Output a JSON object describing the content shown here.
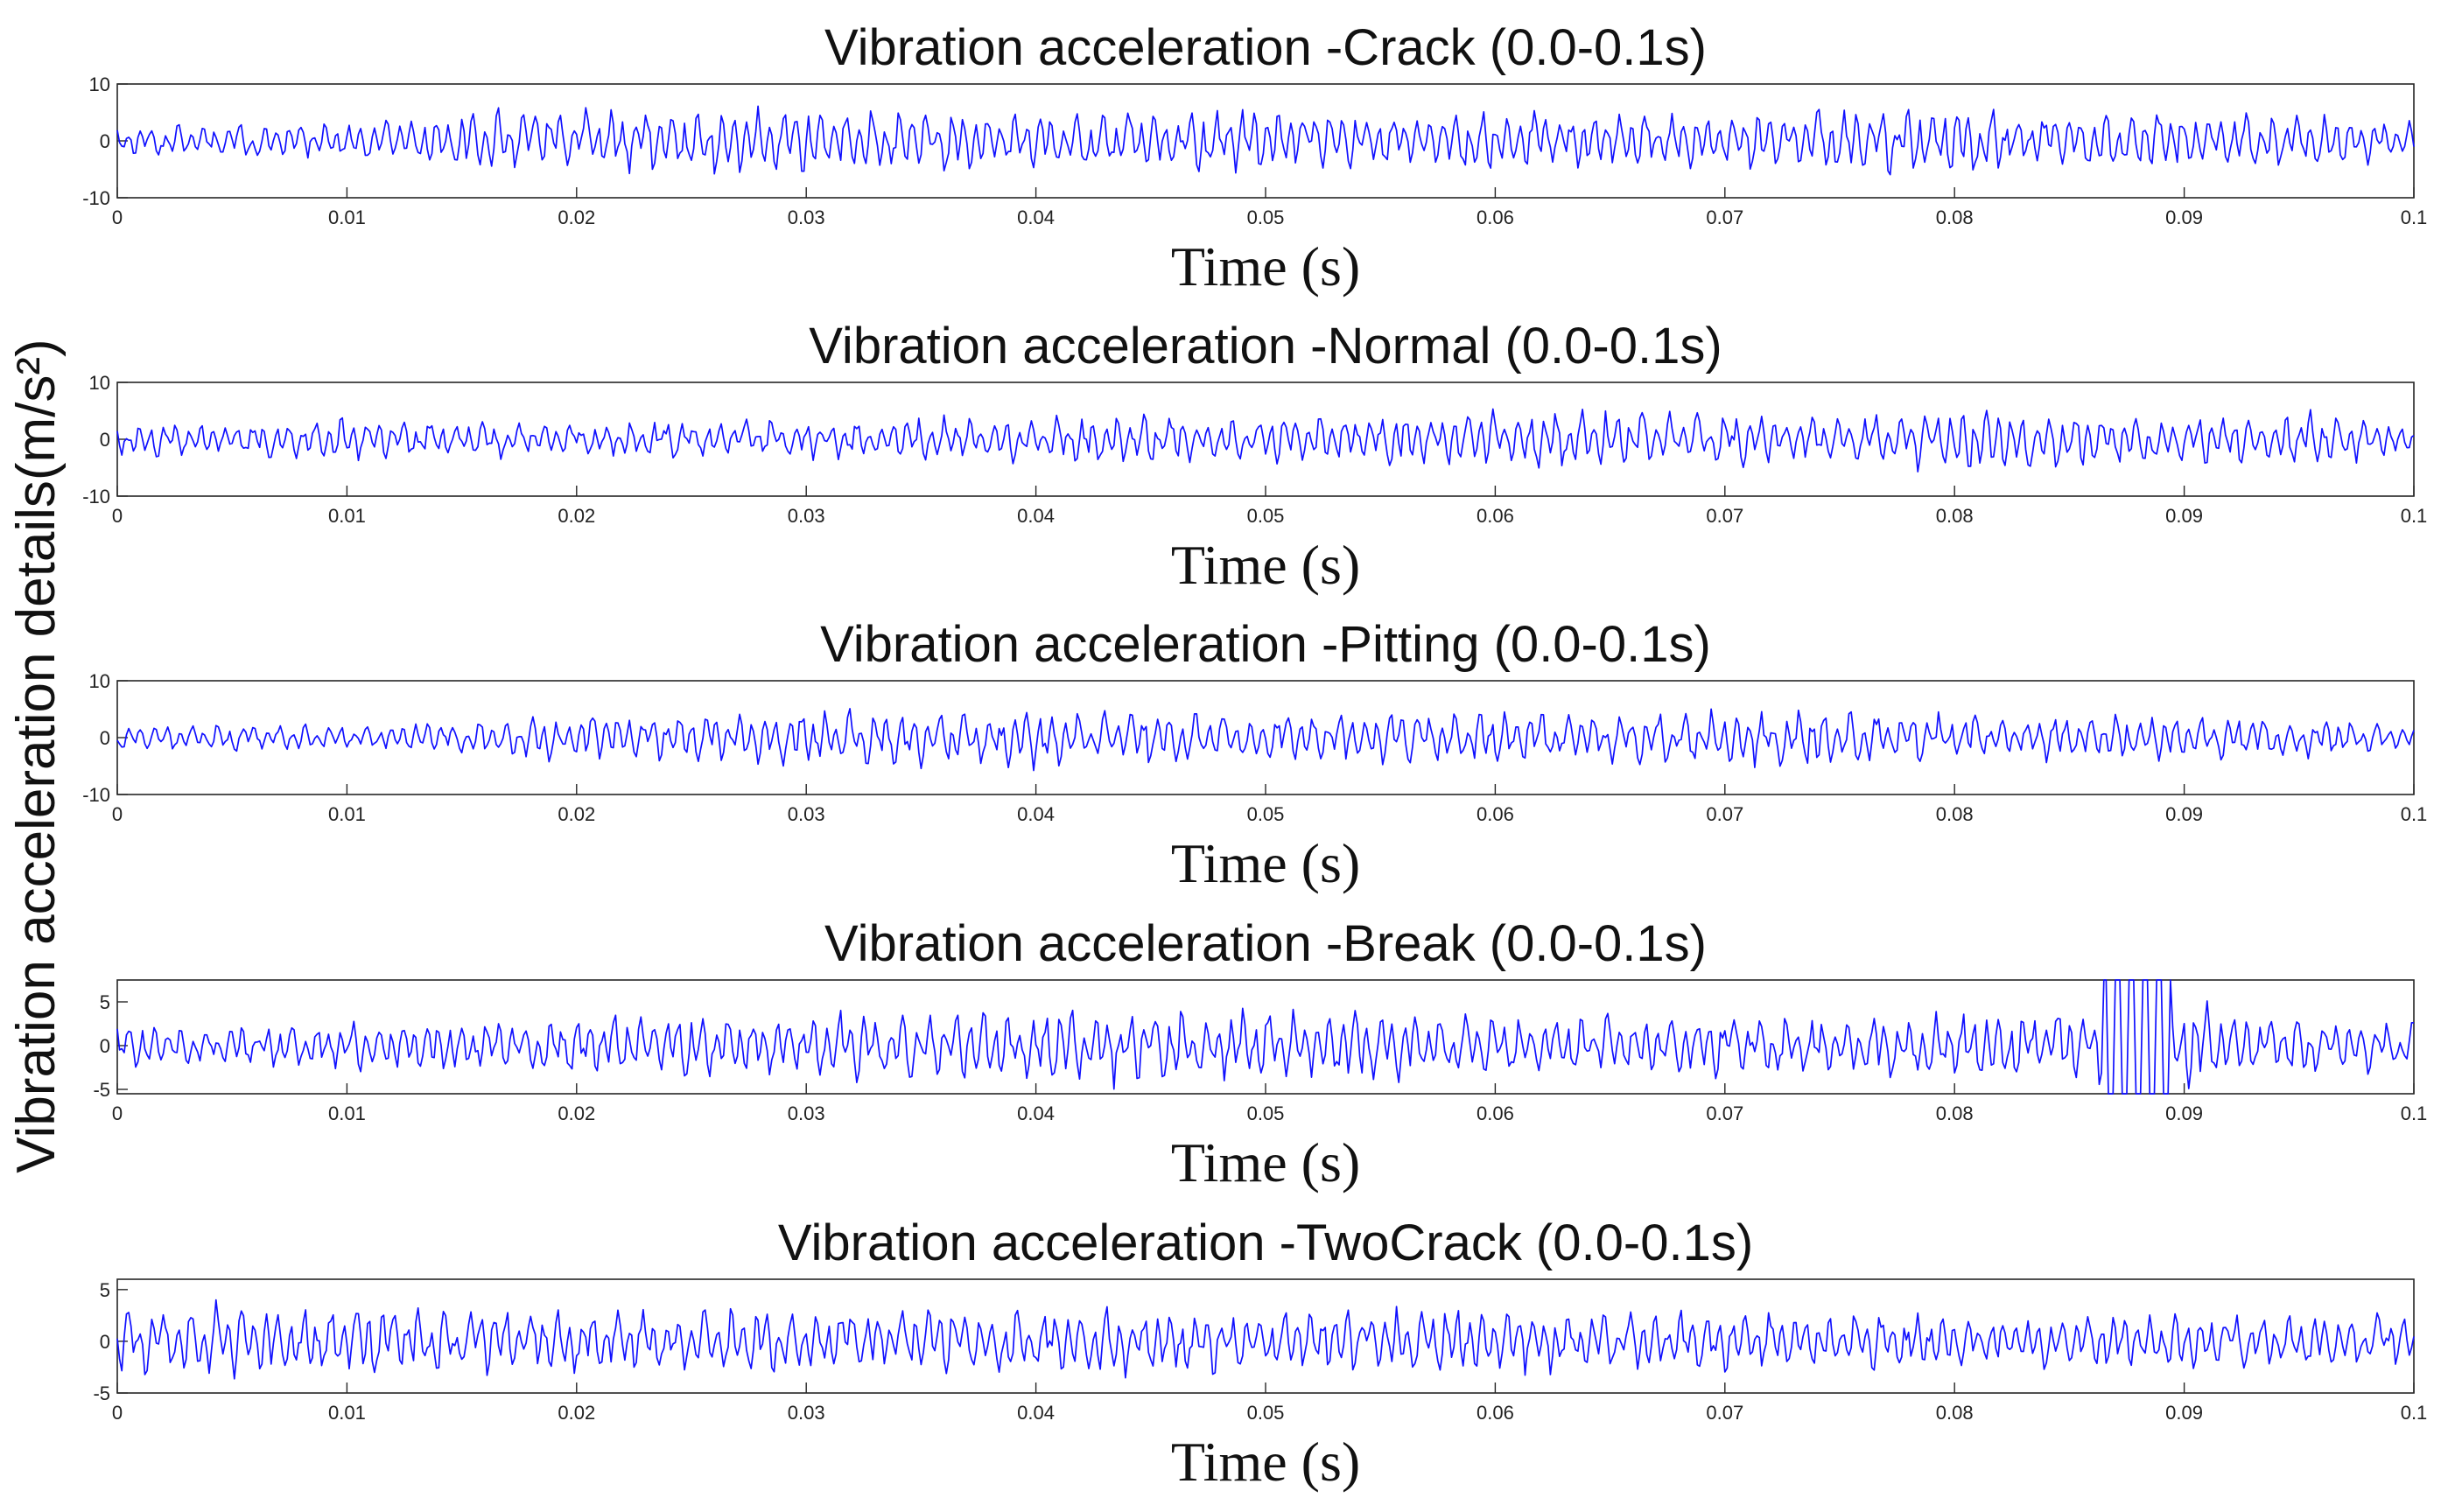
{
  "ylabel": "Vibration acceleration details(m/s²)",
  "colors": {
    "line": "#1010ff",
    "axis": "#262626",
    "text": "#111111"
  },
  "chart_data": [
    {
      "type": "line",
      "title": "Vibration acceleration -Crack (0.0-0.1s)",
      "xlabel": "Time (s)",
      "xlim": [
        0,
        0.1
      ],
      "ylim": [
        -10,
        10
      ],
      "xticks": [
        "0",
        "0.01",
        "0.02",
        "0.03",
        "0.04",
        "0.05",
        "0.06",
        "0.07",
        "0.08",
        "0.09",
        "0.1"
      ],
      "yticks": [
        {
          "v": 10,
          "label": "10"
        },
        {
          "v": 0,
          "label": "0"
        },
        {
          "v": -10,
          "label": "-10"
        }
      ],
      "points": 1000,
      "amp_envelope": [
        2.5,
        2.5,
        2.6,
        4.5,
        4.5,
        5.5,
        5.0,
        5.5,
        4.5,
        4.8,
        5.0,
        4.0,
        5.0,
        4.5,
        4.5,
        5.0,
        5.5,
        4.5,
        4.5,
        4.0,
        3.0
      ],
      "series": [
        {
          "name": "Crack",
          "seed": 11
        }
      ]
    },
    {
      "type": "line",
      "title": "Vibration acceleration -Normal (0.0-0.1s)",
      "xlabel": "Time (s)",
      "xlim": [
        0,
        0.1
      ],
      "ylim": [
        -10,
        10
      ],
      "xticks": [
        "0",
        "0.01",
        "0.02",
        "0.03",
        "0.04",
        "0.05",
        "0.06",
        "0.07",
        "0.08",
        "0.09",
        "0.1"
      ],
      "yticks": [
        {
          "v": 10,
          "label": "10"
        },
        {
          "v": 0,
          "label": "0"
        },
        {
          "v": -10,
          "label": "-10"
        }
      ],
      "points": 1000,
      "amp_envelope": [
        2.8,
        2.5,
        3.5,
        3.0,
        2.5,
        3.0,
        3.0,
        3.5,
        3.5,
        4.0,
        3.5,
        4.0,
        4.5,
        5.0,
        4.0,
        3.5,
        5.0,
        4.5,
        3.5,
        4.5,
        2.5
      ],
      "series": [
        {
          "name": "Normal",
          "seed": 23
        }
      ]
    },
    {
      "type": "line",
      "title": "Vibration acceleration -Pitting (0.0-0.1s)",
      "xlabel": "Time (s)",
      "xlim": [
        0,
        0.1
      ],
      "ylim": [
        -10,
        10
      ],
      "xticks": [
        "0",
        "0.01",
        "0.02",
        "0.03",
        "0.04",
        "0.05",
        "0.06",
        "0.07",
        "0.08",
        "0.09",
        "0.1"
      ],
      "yticks": [
        {
          "v": 10,
          "label": "10"
        },
        {
          "v": 0,
          "label": "0"
        },
        {
          "v": -10,
          "label": "-10"
        }
      ],
      "points": 1000,
      "amp_envelope": [
        2.0,
        2.0,
        2.0,
        2.5,
        4.0,
        4.0,
        4.5,
        4.5,
        5.0,
        4.5,
        4.0,
        4.0,
        4.5,
        4.0,
        4.5,
        5.0,
        3.5,
        3.5,
        3.5,
        3.0,
        2.5
      ],
      "series": [
        {
          "name": "Pitting",
          "seed": 37
        }
      ]
    },
    {
      "type": "line",
      "title": "Vibration acceleration -Break (0.0-0.1s)",
      "xlabel": "Time (s)",
      "xlim": [
        0,
        0.1
      ],
      "ylim": [
        -5.5,
        7.5
      ],
      "xticks": [
        "0",
        "0.01",
        "0.02",
        "0.03",
        "0.04",
        "0.05",
        "0.06",
        "0.07",
        "0.08",
        "0.09",
        "0.1"
      ],
      "yticks": [
        {
          "v": 5,
          "label": "5"
        },
        {
          "v": 0,
          "label": "0"
        },
        {
          "v": -5,
          "label": "-5"
        }
      ],
      "points": 1000,
      "amp_envelope": [
        2.5,
        2.0,
        2.5,
        3.0,
        3.0,
        3.5,
        3.5,
        3.5,
        4.0,
        4.0,
        3.5,
        3.5,
        3.0,
        3.0,
        3.0,
        3.0,
        3.5,
        3.5,
        4.5,
        3.0,
        2.5
      ],
      "spike_window": [
        0.0865,
        0.0895
      ],
      "series": [
        {
          "name": "Break",
          "seed": 53
        }
      ]
    },
    {
      "type": "line",
      "title": "Vibration acceleration -TwoCrack (0.0-0.1s)",
      "xlabel": "Time (s)",
      "xlim": [
        0,
        0.1
      ],
      "ylim": [
        -5,
        6
      ],
      "xticks": [
        "0",
        "0.01",
        "0.02",
        "0.03",
        "0.04",
        "0.05",
        "0.06",
        "0.07",
        "0.08",
        "0.09",
        "0.1"
      ],
      "yticks": [
        {
          "v": 5,
          "label": "5"
        },
        {
          "v": 0,
          "label": "0"
        },
        {
          "v": -5,
          "label": "-5"
        }
      ],
      "points": 1000,
      "amp_envelope": [
        3.0,
        3.2,
        3.0,
        3.0,
        2.8,
        2.8,
        2.8,
        2.8,
        2.8,
        2.8,
        2.8,
        2.8,
        2.8,
        2.5,
        2.5,
        2.5,
        2.2,
        2.2,
        2.2,
        2.2,
        2.2
      ],
      "series": [
        {
          "name": "TwoCrack",
          "seed": 71
        }
      ]
    }
  ]
}
